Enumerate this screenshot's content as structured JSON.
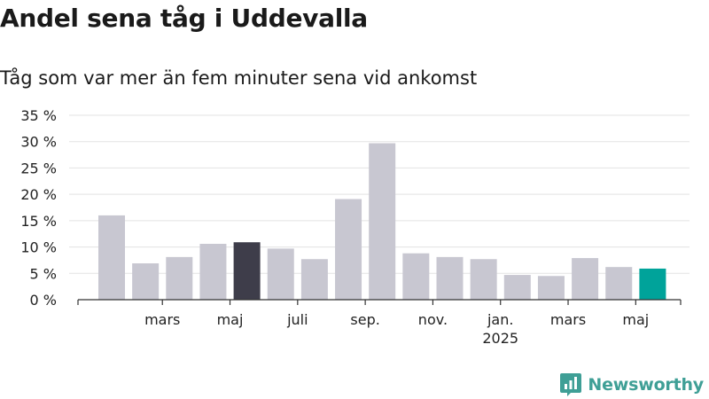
{
  "title": "Andel sena tåg i Uddevalla",
  "subtitle": "Tåg som var mer än fem minuter sena vid ankomst",
  "brand": "Newsworthy",
  "colors": {
    "bar_default": "#c8c7d1",
    "bar_highlight_dark": "#3e3d4a",
    "bar_highlight_accent": "#00a39a",
    "grid": "#e3e3e3",
    "axis": "#333333",
    "brand": "#3f9f96"
  },
  "chart_data": {
    "type": "bar",
    "title": "Andel sena tåg i Uddevalla",
    "subtitle": "Tåg som var mer än fem minuter sena vid ankomst",
    "ylim": [
      0,
      35
    ],
    "yticks": [
      0,
      5,
      10,
      15,
      20,
      25,
      30,
      35
    ],
    "ytick_labels": [
      "0 %",
      "5 %",
      "10 %",
      "15 %",
      "20 %",
      "25 %",
      "30 %",
      "35 %"
    ],
    "grid": true,
    "values": [
      16.0,
      6.9,
      8.1,
      10.6,
      10.9,
      9.7,
      7.7,
      19.1,
      29.7,
      8.8,
      8.1,
      7.7,
      4.7,
      4.5,
      7.9,
      6.2,
      5.9
    ],
    "highlight": {
      "4": "bar_highlight_dark",
      "16": "bar_highlight_accent"
    },
    "xtick_labels": [
      {
        "index": 1.5,
        "label": "mars"
      },
      {
        "index": 3.5,
        "label": "maj"
      },
      {
        "index": 5.5,
        "label": "juli"
      },
      {
        "index": 7.5,
        "label": "sep."
      },
      {
        "index": 9.5,
        "label": "nov."
      },
      {
        "index": 11.5,
        "label": "jan.",
        "sublabel": "2025"
      },
      {
        "index": 13.5,
        "label": "mars"
      },
      {
        "index": 15.5,
        "label": "maj"
      }
    ]
  }
}
